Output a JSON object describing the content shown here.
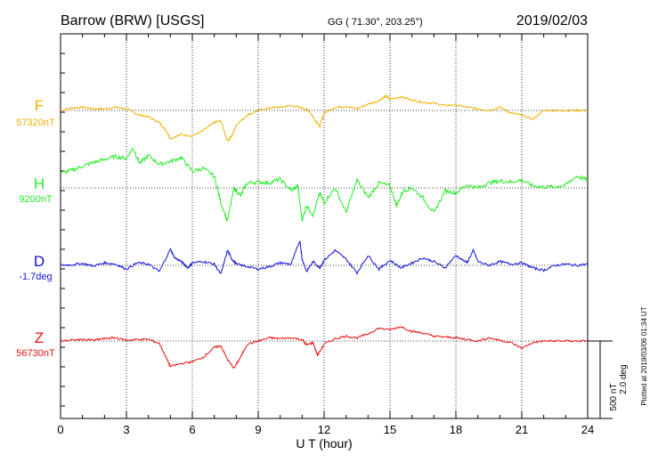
{
  "header": {
    "station": "Barrow (BRW)  [USGS]",
    "coords": "GG ( 71.30°, 203.25°)",
    "date": "2019/02/03"
  },
  "footer": {
    "xlabel": "U T (hour)",
    "plotted": "Plotted at 2019/03/06 01:34  UT"
  },
  "scale": {
    "nt": "500 nT",
    "deg": "2.0 deg"
  },
  "chart_data": {
    "type": "line",
    "xlabel": "U T (hour)",
    "xlim": [
      0,
      24
    ],
    "xticks": [
      0,
      3,
      6,
      9,
      12,
      15,
      18,
      21,
      24
    ],
    "x_tick_labels": [
      "0",
      "3",
      "6",
      "9",
      "12",
      "15",
      "18",
      "21",
      "24"
    ],
    "grid": true,
    "series": [
      {
        "name": "F",
        "baseline_label": "57320nT",
        "color": "#f0b000",
        "x": [
          0,
          0.5,
          1,
          1.5,
          2,
          2.5,
          3,
          3.5,
          4,
          4.5,
          4.8,
          5,
          5.5,
          6,
          6.5,
          7,
          7.3,
          7.6,
          7.8,
          8,
          8.5,
          9,
          9.5,
          10,
          10.5,
          11,
          11.3,
          11.6,
          11.8,
          12,
          12.5,
          13,
          13.5,
          14,
          14.5,
          14.8,
          15,
          15.5,
          16,
          16.5,
          17,
          17.5,
          18,
          18.5,
          19,
          19.5,
          20,
          20.5,
          21,
          21.5,
          22,
          22.5,
          23,
          23.5,
          24
        ],
        "y": [
          0,
          30,
          40,
          20,
          20,
          40,
          20,
          -50,
          -80,
          -150,
          -250,
          -350,
          -300,
          -320,
          -250,
          -150,
          -130,
          -380,
          -320,
          -180,
          -60,
          0,
          30,
          40,
          60,
          30,
          0,
          -120,
          -200,
          -30,
          40,
          50,
          20,
          80,
          120,
          180,
          140,
          170,
          130,
          100,
          90,
          60,
          70,
          40,
          20,
          0,
          40,
          -30,
          -60,
          -110,
          0,
          0,
          0,
          0,
          0
        ]
      },
      {
        "name": "H",
        "baseline_label": "9200nT",
        "color": "#22ee22",
        "x": [
          0,
          0.5,
          1,
          1.5,
          2,
          2.5,
          3,
          3.3,
          3.6,
          4,
          4.5,
          5,
          5.5,
          6,
          6.5,
          7,
          7.3,
          7.6,
          7.9,
          8.2,
          8.5,
          9,
          9.5,
          10,
          10.5,
          10.8,
          11,
          11.2,
          11.5,
          11.8,
          12,
          12.5,
          13,
          13.5,
          14,
          14.5,
          15,
          15.3,
          15.6,
          16,
          16.5,
          17,
          17.5,
          18,
          18.5,
          19,
          19.5,
          20,
          20.5,
          21,
          21.5,
          22,
          22.5,
          23,
          23.5,
          24
        ],
        "y": [
          300,
          360,
          440,
          520,
          580,
          640,
          600,
          820,
          500,
          660,
          480,
          540,
          620,
          340,
          400,
          240,
          -300,
          -680,
          0,
          -160,
          100,
          120,
          100,
          180,
          -60,
          40,
          -660,
          -360,
          -560,
          -100,
          -300,
          0,
          -500,
          160,
          -200,
          100,
          40,
          -360,
          -60,
          0,
          -200,
          -520,
          -60,
          -100,
          60,
          0,
          100,
          140,
          120,
          160,
          40,
          20,
          20,
          60,
          240,
          160
        ]
      },
      {
        "name": "D",
        "baseline_label": "-1.7deg",
        "color": "#1010dd",
        "x": [
          0,
          0.5,
          1,
          1.5,
          2,
          2.5,
          3,
          3.5,
          4,
          4.5,
          5,
          5.2,
          5.5,
          5.8,
          6,
          6.5,
          7,
          7.3,
          7.6,
          7.8,
          8,
          8.5,
          9,
          9.5,
          10,
          10.5,
          10.9,
          11,
          11.2,
          11.5,
          11.8,
          12,
          12.5,
          13,
          13.5,
          14,
          14.5,
          15,
          15.5,
          16,
          16.5,
          17,
          17.5,
          18,
          18.5,
          18.8,
          19,
          19.5,
          20,
          20.5,
          21,
          21.5,
          22,
          22.5,
          23,
          23.5,
          24
        ],
        "y": [
          0,
          0.05,
          0.15,
          -0.05,
          0.2,
          0.1,
          -0.3,
          0.2,
          0.1,
          -0.5,
          1.3,
          0.6,
          0.3,
          -0.2,
          0.2,
          0.3,
          0.1,
          -0.7,
          1.2,
          0.5,
          0.1,
          -0.1,
          -0.3,
          -0.1,
          0.2,
          0.1,
          2.0,
          0.5,
          -0.5,
          0.3,
          -0.2,
          0.4,
          1.2,
          0.5,
          -0.6,
          0.8,
          -0.3,
          0.4,
          -0.2,
          0.2,
          0.6,
          0.3,
          -0.2,
          0.8,
          0.2,
          1.2,
          0.3,
          0.0,
          0.3,
          0.1,
          0.2,
          -0.2,
          -0.4,
          0.0,
          0.1,
          0.0,
          0.1
        ]
      },
      {
        "name": "Z",
        "baseline_label": "56730nT",
        "color": "#ee1111",
        "x": [
          0,
          0.5,
          1,
          1.5,
          2,
          2.5,
          3,
          3.5,
          4,
          4.5,
          4.8,
          5,
          5.5,
          6,
          6.5,
          7,
          7.3,
          7.6,
          7.9,
          8.2,
          8.5,
          9,
          9.5,
          10,
          10.5,
          11,
          11.2,
          11.5,
          11.7,
          12,
          12.5,
          13,
          13.5,
          14,
          14.5,
          15,
          15.5,
          16,
          16.5,
          17,
          17.5,
          18,
          18.5,
          19,
          19.5,
          20,
          20.5,
          21,
          21.5,
          22,
          22.5,
          23,
          23.5,
          24
        ],
        "y": [
          0,
          10,
          20,
          10,
          30,
          40,
          10,
          20,
          20,
          -30,
          -200,
          -320,
          -280,
          -260,
          -200,
          -80,
          -60,
          -230,
          -340,
          -200,
          -40,
          0,
          40,
          30,
          40,
          20,
          -50,
          -20,
          -180,
          -40,
          30,
          60,
          40,
          90,
          160,
          140,
          180,
          120,
          100,
          60,
          50,
          40,
          20,
          0,
          40,
          10,
          -20,
          -90,
          -20,
          0,
          0,
          0,
          0,
          0
        ]
      }
    ]
  }
}
